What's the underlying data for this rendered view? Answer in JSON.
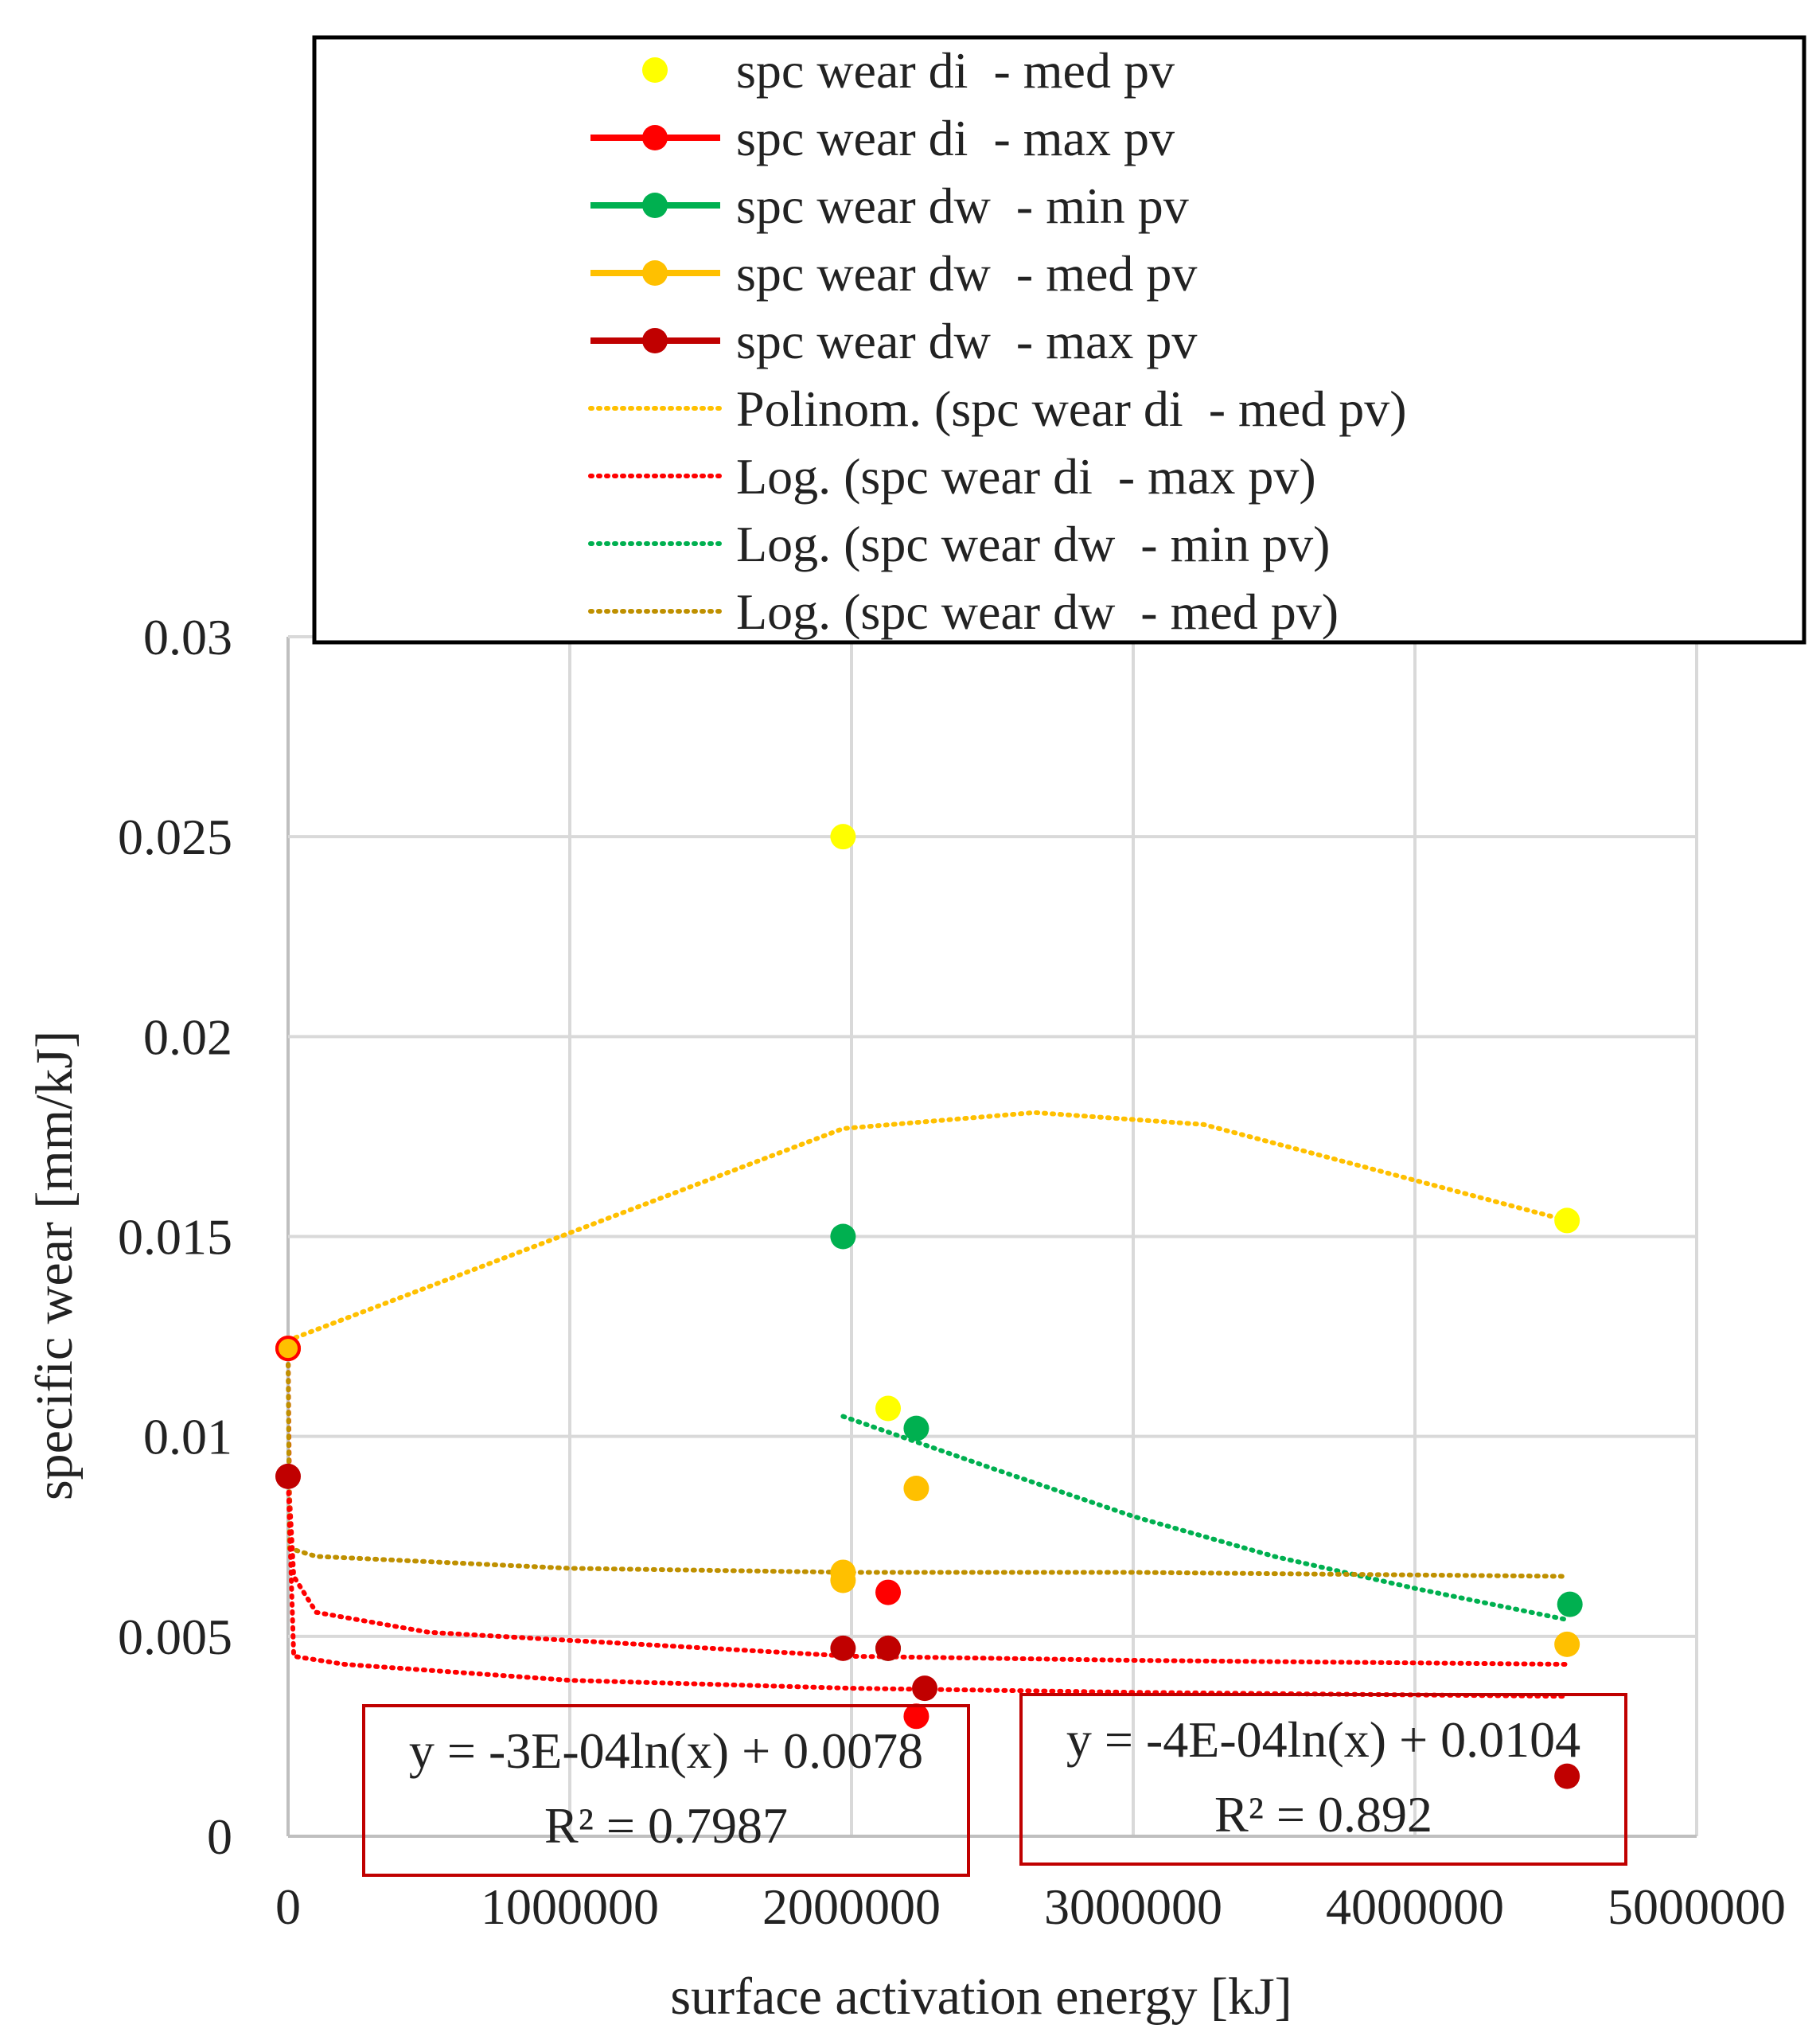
{
  "chart_data": {
    "type": "scatter",
    "title": "",
    "xlabel": "surface activation energy [kJ]",
    "ylabel": "specific wear [mm/kJ]",
    "xlim": [
      0,
      5000000
    ],
    "ylim": [
      0,
      0.03
    ],
    "x_ticks": [
      0,
      1000000,
      2000000,
      3000000,
      4000000,
      5000000
    ],
    "x_tick_labels": [
      "0",
      "1000000",
      "2000000",
      "3000000",
      "4000000",
      "5000000"
    ],
    "y_ticks": [
      0,
      0.005,
      0.01,
      0.015,
      0.02,
      0.025,
      0.03
    ],
    "y_tick_labels": [
      "0",
      "0.005",
      "0.01",
      "0.015",
      "0.02",
      "0.025",
      "0.03"
    ],
    "grid": true,
    "legend_position": "top",
    "series": [
      {
        "name": "spc wear di  - med pv",
        "color": "#FFFF00",
        "line": false,
        "points": [
          [
            0,
            0.0122
          ],
          [
            1970000,
            0.025
          ],
          [
            2130000,
            0.0107
          ],
          [
            4540000,
            0.0154
          ]
        ]
      },
      {
        "name": "spc wear di  - max pv",
        "color": "#FF0000",
        "line": true,
        "points": [
          [
            0,
            0.0122
          ],
          [
            2130000,
            0.0061
          ],
          [
            2230000,
            0.003
          ]
        ]
      },
      {
        "name": "spc wear dw  - min pv",
        "color": "#00B050",
        "line": true,
        "points": [
          [
            1970000,
            0.015
          ],
          [
            2230000,
            0.0102
          ],
          [
            2130000,
            0.0047
          ],
          [
            4550000,
            0.0058
          ]
        ]
      },
      {
        "name": "spc wear dw  - med pv",
        "color": "#FFC000",
        "line": true,
        "points": [
          [
            0,
            0.0122
          ],
          [
            1970000,
            0.0066
          ],
          [
            1970000,
            0.0064
          ],
          [
            2230000,
            0.0087
          ],
          [
            4540000,
            0.0048
          ]
        ]
      },
      {
        "name": "spc wear dw  - max pv",
        "color": "#C00000",
        "line": true,
        "points": [
          [
            0,
            0.009
          ],
          [
            1970000,
            0.0047
          ],
          [
            2130000,
            0.0047
          ],
          [
            2260000,
            0.0037
          ],
          [
            4540000,
            0.0015
          ]
        ]
      }
    ],
    "trendlines": [
      {
        "name": "Polinom. (spc wear di  - med pv)",
        "color": "#FFC000",
        "kind": "poly2",
        "x_range": [
          0,
          4540000
        ],
        "points": [
          [
            0,
            0.0124
          ],
          [
            1970000,
            0.0177
          ],
          [
            2650000,
            0.0181
          ],
          [
            3250000,
            0.0178
          ],
          [
            4540000,
            0.0154
          ]
        ]
      },
      {
        "name": "Log. (spc wear di  - max pv)",
        "color": "#FF0000",
        "kind": "log",
        "a": -0.0003,
        "b": 0.0078,
        "x_range": [
          0,
          4540000
        ],
        "points": [
          [
            0,
            0.0122
          ],
          [
            5000,
            0.0085
          ],
          [
            20000,
            0.0065
          ],
          [
            100000,
            0.0056
          ],
          [
            500000,
            0.0051
          ],
          [
            1000000,
            0.0049
          ],
          [
            2000000,
            0.0045
          ],
          [
            3000000,
            0.0044
          ],
          [
            4540000,
            0.0043
          ]
        ]
      },
      {
        "name": "Log. (spc wear dw  - min pv)",
        "color": "#00B050",
        "kind": "log",
        "a": -0.0004,
        "b": 0.0104,
        "x_range": [
          1970000,
          4550000
        ],
        "points": [
          [
            1970000,
            0.0105
          ],
          [
            2500000,
            0.0092
          ],
          [
            3000000,
            0.008
          ],
          [
            3500000,
            0.007
          ],
          [
            4000000,
            0.0062
          ],
          [
            4550000,
            0.0054
          ]
        ]
      },
      {
        "name": "Log. (spc wear dw  - med pv)",
        "color": "#BF9000",
        "kind": "log",
        "x_range": [
          0,
          4540000
        ],
        "points": [
          [
            0,
            0.0122
          ],
          [
            5000,
            0.0072
          ],
          [
            100000,
            0.007
          ],
          [
            1000000,
            0.0067
          ],
          [
            2000000,
            0.0066
          ],
          [
            3000000,
            0.0066
          ],
          [
            4540000,
            0.0065
          ]
        ]
      },
      {
        "name": "",
        "color": "#FF0000",
        "kind": "log",
        "in_legend": false,
        "x_range": [
          0,
          4540000
        ],
        "points": [
          [
            0,
            0.009
          ],
          [
            20000,
            0.0045
          ],
          [
            200000,
            0.0043
          ],
          [
            1000000,
            0.0039
          ],
          [
            2000000,
            0.0037
          ],
          [
            3000000,
            0.0036
          ],
          [
            4540000,
            0.0035
          ]
        ]
      }
    ],
    "legend": [
      {
        "label": "spc wear di  - med pv",
        "color": "#FFFF00",
        "style": "marker"
      },
      {
        "label": "spc wear di  - max pv",
        "color": "#FF0000",
        "style": "line-marker"
      },
      {
        "label": "spc wear dw  - min pv",
        "color": "#00B050",
        "style": "line-marker"
      },
      {
        "label": "spc wear dw  - med pv",
        "color": "#FFC000",
        "style": "line-marker"
      },
      {
        "label": "spc wear dw  - max pv",
        "color": "#C00000",
        "style": "line-marker"
      },
      {
        "label": "Polinom. (spc wear di  - med pv)",
        "color": "#FFC000",
        "style": "dotted"
      },
      {
        "label": "Log. (spc wear di  - max pv)",
        "color": "#FF0000",
        "style": "dotted"
      },
      {
        "label": "Log. (spc wear dw  - min pv)",
        "color": "#00B050",
        "style": "dotted"
      },
      {
        "label": "Log. (spc wear dw  - med pv)",
        "color": "#BF9000",
        "style": "dotted"
      }
    ],
    "annotations": [
      {
        "name": "equation-box-left",
        "lines": [
          "y = -3E-04ln(x) + 0.0078",
          "R² = 0.7987"
        ],
        "border_color": "#C00000"
      },
      {
        "name": "equation-box-right",
        "lines": [
          "y = -4E-04ln(x) + 0.0104",
          "R² = 0.892"
        ],
        "border_color": "#C00000"
      }
    ]
  }
}
